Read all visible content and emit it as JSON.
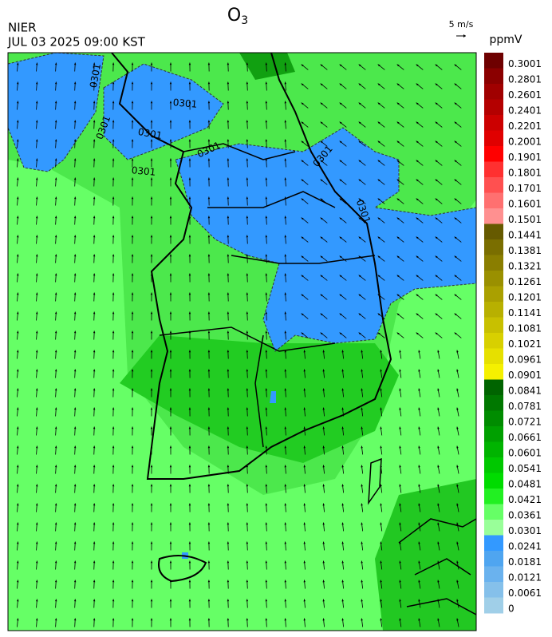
{
  "header": {
    "title": {
      "main": "O",
      "subscript": "3"
    },
    "source": "NIER",
    "datetime": "JUL 03 2025 09:00 KST",
    "wind_scale": "5 m/s",
    "unit": "ppmV"
  },
  "contour_labels": [
    "0301",
    "0301",
    "0301",
    "0301",
    "0301",
    "0301",
    "0301",
    "0301"
  ],
  "colorbar": {
    "labels": [
      0.3001,
      0.2801,
      0.2601,
      0.2401,
      0.2201,
      0.2001,
      0.1901,
      0.1801,
      0.1701,
      0.1601,
      0.1501,
      0.1441,
      0.1381,
      0.1321,
      0.1261,
      0.1201,
      0.1141,
      0.1081,
      0.1021,
      0.0961,
      0.0901,
      0.0841,
      0.0781,
      0.0721,
      0.0661,
      0.0601,
      0.0541,
      0.0481,
      0.0421,
      0.0361,
      0.0301,
      0.0241,
      0.0181,
      0.0121,
      0.0061,
      0
    ],
    "colors": [
      "#6e0000",
      "#8b0000",
      "#a00000",
      "#b40000",
      "#cc0000",
      "#e00000",
      "#ff0000",
      "#ff3030",
      "#ff5050",
      "#ff7070",
      "#ff9090",
      "#665a00",
      "#7a6e00",
      "#8a7e00",
      "#9a9000",
      "#aaa000",
      "#b8b000",
      "#c8c000",
      "#d8d000",
      "#e6e000",
      "#f5f000",
      "#006400",
      "#007800",
      "#008c00",
      "#00a000",
      "#00b400",
      "#00c800",
      "#00dc00",
      "#22f022",
      "#66ff66",
      "#99ff99",
      "#3399ff",
      "#4fa5f0",
      "#6ab2ee",
      "#85c0ea",
      "#a0cfe8"
    ]
  }
}
